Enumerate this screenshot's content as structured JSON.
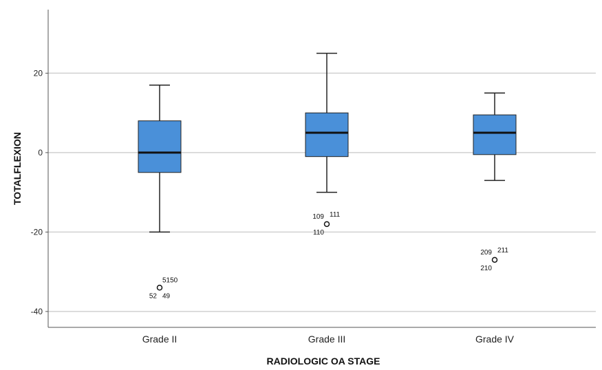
{
  "chart_data": {
    "type": "boxplot",
    "xlabel": "RADIOLOGIC OA STAGE",
    "ylabel": "TOTALFLEXION",
    "ylim": [
      -44,
      36
    ],
    "yticks": [
      20,
      0,
      -20,
      -40
    ],
    "grid": "horizontal",
    "colors": {
      "box": "#4a90d9",
      "grid": "#d0d0d0",
      "axis": "#555555"
    },
    "categories": [
      "Grade II",
      "Grade III",
      "Grade IV"
    ],
    "boxes": [
      {
        "category": "Grade II",
        "min": -20,
        "q1": -5,
        "median": 0,
        "q3": 8,
        "max": 17,
        "outliers": [
          {
            "value": -34,
            "labels": [
              "51",
              "50",
              "52",
              "49"
            ]
          }
        ]
      },
      {
        "category": "Grade III",
        "min": -10,
        "q1": -1,
        "median": 5,
        "q3": 10,
        "max": 25,
        "outliers": [
          {
            "value": -18,
            "labels": [
              "109",
              "111",
              "110"
            ]
          }
        ]
      },
      {
        "category": "Grade IV",
        "min": -7,
        "q1": -0.5,
        "median": 5,
        "q3": 9.5,
        "max": 15,
        "outliers": [
          {
            "value": -27,
            "labels": [
              "209",
              "211",
              "210"
            ]
          }
        ]
      }
    ]
  }
}
